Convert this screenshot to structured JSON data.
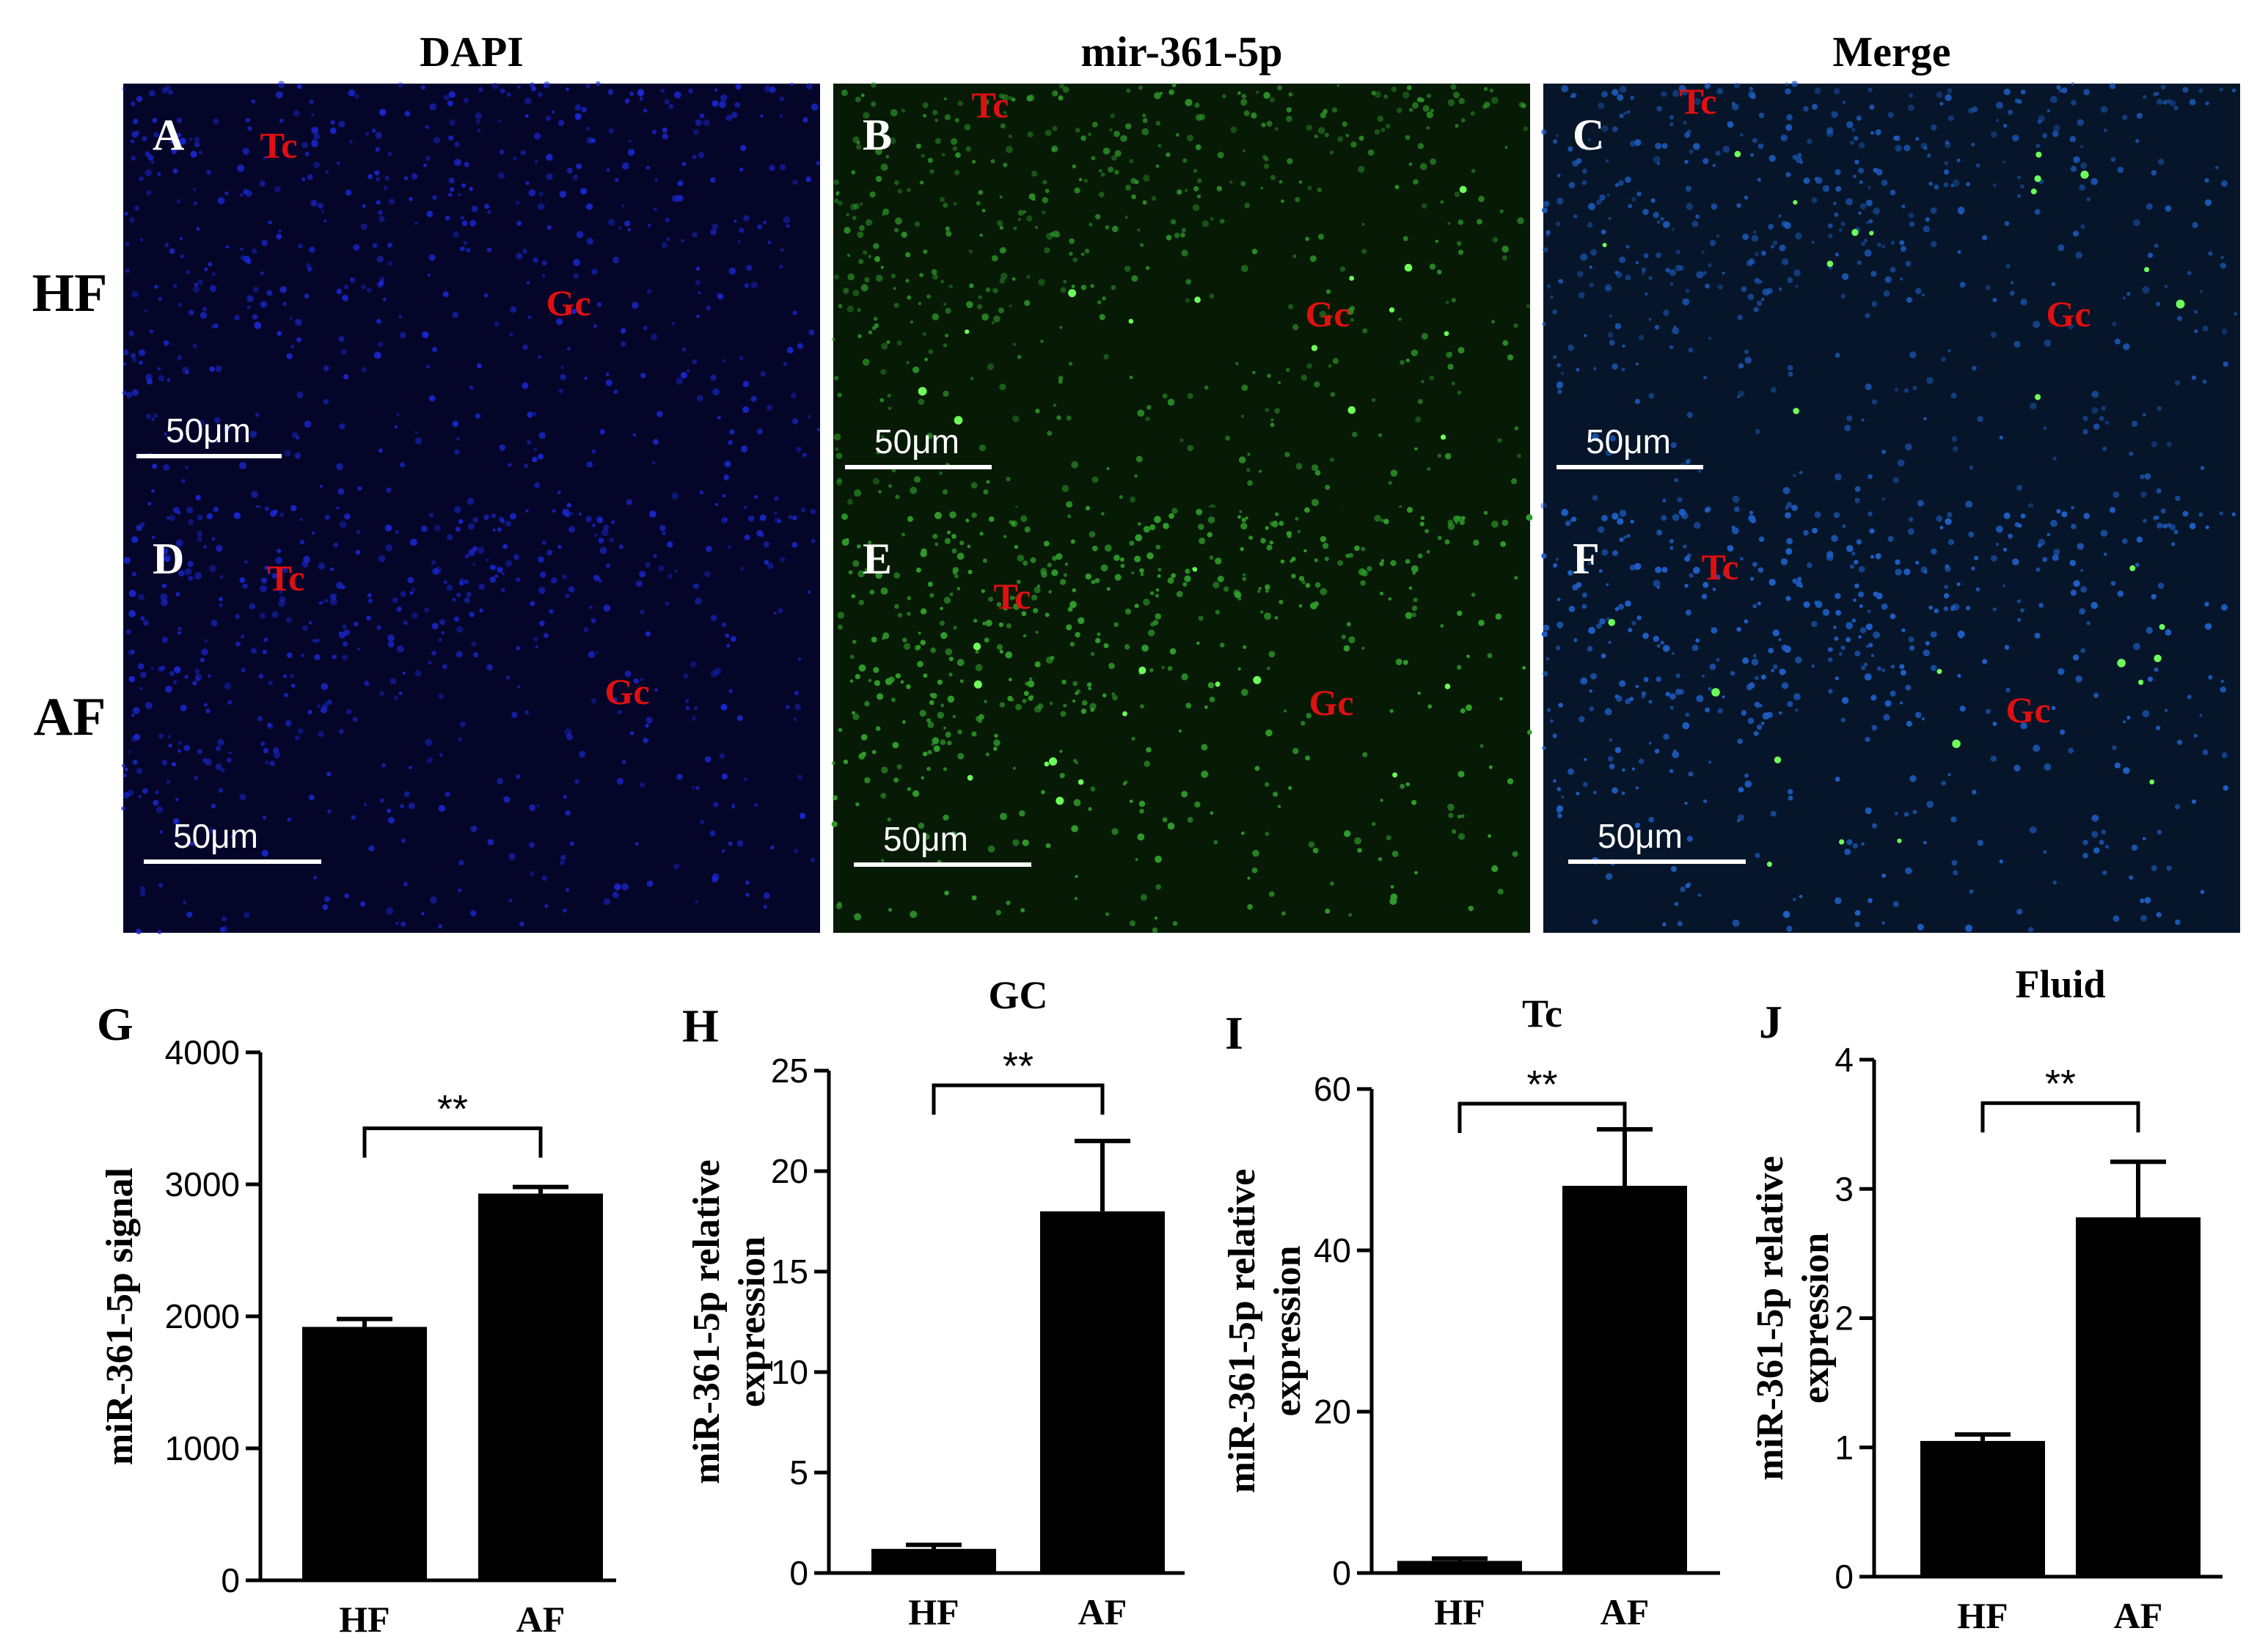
{
  "figure": {
    "micrograph_columns": [
      "DAPI",
      "mir-361-5p",
      "Merge"
    ],
    "micrograph_rows": [
      "HF",
      "AF"
    ],
    "colors": {
      "dapi_bg": "#05052a",
      "dapi_cell": "#1a2ad8",
      "green_bg": "#071a06",
      "green_cell": "#2f9a2a",
      "green_bright": "#6dff5a",
      "merge_bg": "#061529",
      "merge_cell": "#1e5ec4",
      "region_label": "#e01010",
      "scale": "#ffffff"
    },
    "panels": [
      {
        "letter": "A",
        "channel": "dapi",
        "row": "HF",
        "labels": [
          "Tc",
          "Gc"
        ],
        "scale": "50μm"
      },
      {
        "letter": "B",
        "channel": "green",
        "row": "HF",
        "labels": [
          "Tc",
          "Gc"
        ],
        "scale": "50μm"
      },
      {
        "letter": "C",
        "channel": "merge",
        "row": "HF",
        "labels": [
          "Tc",
          "Gc"
        ],
        "scale": "50μm"
      },
      {
        "letter": "D",
        "channel": "dapi",
        "row": "AF",
        "labels": [
          "Tc",
          "Gc"
        ],
        "scale": "50μm"
      },
      {
        "letter": "E",
        "channel": "green",
        "row": "AF",
        "labels": [
          "Tc",
          "Gc"
        ],
        "scale": "50μm"
      },
      {
        "letter": "F",
        "channel": "merge",
        "row": "AF",
        "labels": [
          "Tc",
          "Gc"
        ],
        "scale": "50μm"
      }
    ]
  },
  "chart_data": [
    {
      "panel": "G",
      "type": "bar",
      "title": "",
      "categories": [
        "HF",
        "AF"
      ],
      "values": [
        1920,
        2930
      ],
      "errors": [
        60,
        50
      ],
      "ylabel": "miR-361-5p signal",
      "ylim": [
        0,
        4000
      ],
      "yticks": [
        0,
        1000,
        2000,
        3000,
        4000
      ],
      "significance": "**"
    },
    {
      "panel": "H",
      "type": "bar",
      "title": "GC",
      "categories": [
        "HF",
        "AF"
      ],
      "values": [
        1.2,
        18
      ],
      "errors": [
        0.2,
        3.5
      ],
      "ylabel": "miR-361-5p relative expression",
      "ylim": [
        0,
        25
      ],
      "yticks": [
        0,
        5,
        10,
        15,
        20,
        25
      ],
      "significance": "**"
    },
    {
      "panel": "I",
      "type": "bar",
      "title": "Tc",
      "categories": [
        "HF",
        "AF"
      ],
      "values": [
        1.5,
        48
      ],
      "errors": [
        0.3,
        7
      ],
      "ylabel": "miR-361-5p relative expression",
      "ylim": [
        0,
        60
      ],
      "yticks": [
        0,
        20,
        40,
        60
      ],
      "significance": "**"
    },
    {
      "panel": "J",
      "type": "bar",
      "title": "Fluid",
      "categories": [
        "HF",
        "AF"
      ],
      "values": [
        1.05,
        2.78
      ],
      "errors": [
        0.05,
        0.43
      ],
      "ylabel": "miR-361-5p relative expression",
      "ylim": [
        0,
        4
      ],
      "yticks": [
        0,
        1,
        2,
        3,
        4
      ],
      "significance": "**"
    }
  ]
}
